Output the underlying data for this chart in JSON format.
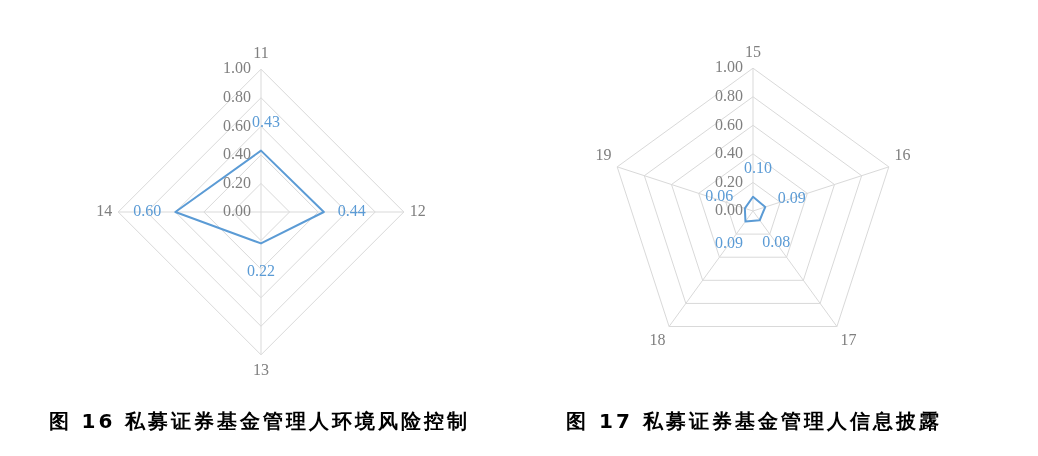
{
  "chart_data": [
    {
      "type": "radar",
      "title": "图 16 私募证券基金管理人环境风险控制",
      "categories": [
        "11",
        "12",
        "13",
        "14"
      ],
      "series": [
        {
          "color": "#5b9bd5",
          "values": [
            0.43,
            0.44,
            0.22,
            0.6
          ],
          "value_labels": [
            "0.43",
            "0.44",
            "0.22",
            "0.60"
          ]
        }
      ],
      "ylim": [
        0,
        1
      ],
      "yticks": [
        {
          "value": 0,
          "label": "0.00"
        },
        {
          "value": 0.2,
          "label": "0.20"
        },
        {
          "value": 0.4,
          "label": "0.40"
        },
        {
          "value": 0.6,
          "label": "0.60"
        },
        {
          "value": 0.8,
          "label": "0.80"
        },
        {
          "value": 1,
          "label": "1.00"
        }
      ],
      "grid": true,
      "marker": "none"
    },
    {
      "type": "radar",
      "title": "图 17 私募证券基金管理人信息披露",
      "categories": [
        "15",
        "16",
        "17",
        "18",
        "19"
      ],
      "series": [
        {
          "color": "#5b9bd5",
          "values": [
            0.1,
            0.09,
            0.08,
            0.09,
            0.06
          ],
          "value_labels": [
            "0.10",
            "0.09",
            "0.08",
            "0.09",
            "0.06"
          ]
        }
      ],
      "ylim": [
        0,
        1
      ],
      "yticks": [
        {
          "value": 0,
          "label": "0.00"
        },
        {
          "value": 0.2,
          "label": "0.20"
        },
        {
          "value": 0.4,
          "label": "0.40"
        },
        {
          "value": 0.6,
          "label": "0.60"
        },
        {
          "value": 0.8,
          "label": "0.80"
        },
        {
          "value": 1,
          "label": "1.00"
        }
      ],
      "grid": true,
      "marker": "none"
    }
  ]
}
